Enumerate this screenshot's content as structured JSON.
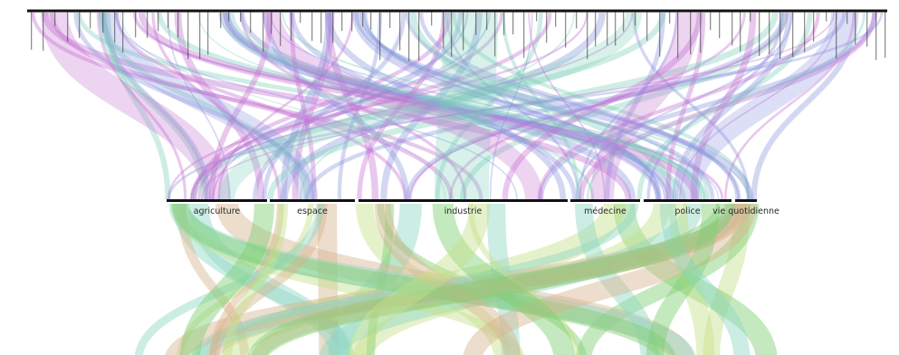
{
  "diagram": {
    "type": "alluvial",
    "categories": [
      {
        "label": "agriculture",
        "color": "#c98ad6"
      },
      {
        "label": "espace",
        "color": "#9aa1e0"
      },
      {
        "label": "industrie",
        "color": "#8fd6c4"
      },
      {
        "label": "médecine",
        "color": "#9aa1e0"
      },
      {
        "label": "police",
        "color": "#9aa1e0"
      },
      {
        "label": "vie quotidienne",
        "color": "#c98ad6"
      }
    ],
    "upper_flow_colors": [
      "#c56fd1",
      "#8c95dd",
      "#7fd0ba"
    ],
    "lower_flow_colors": [
      "#7fce72",
      "#d8b48f",
      "#c6e08a",
      "#8fd6c4"
    ],
    "top_axis_note": "top axis labels are too small to read"
  }
}
